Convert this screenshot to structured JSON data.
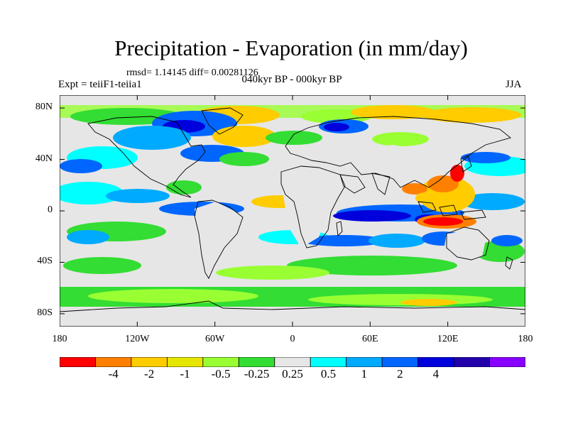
{
  "title": "Precipitation - Evaporation (in mm/day)",
  "stats": "rmsd= 1.14145 diff= 0.00281126",
  "experiment": "Expt = teiiF1-teiia1",
  "period": "040kyr BP - 000kyr BP",
  "season": "JJA",
  "lat_ticks": [
    {
      "value": 80,
      "label": "80N"
    },
    {
      "value": 40,
      "label": "40N"
    },
    {
      "value": 0,
      "label": "0"
    },
    {
      "value": -40,
      "label": "40S"
    },
    {
      "value": -80,
      "label": "80S"
    }
  ],
  "lon_ticks": [
    {
      "value": -180,
      "label": "180"
    },
    {
      "value": -120,
      "label": "120W"
    },
    {
      "value": -60,
      "label": "60W"
    },
    {
      "value": 0,
      "label": "0"
    },
    {
      "value": 60,
      "label": "60E"
    },
    {
      "value": 120,
      "label": "120E"
    },
    {
      "value": 180,
      "label": "180"
    }
  ],
  "colorbar": {
    "colors": [
      "#ff0000",
      "#ff8000",
      "#ffcc00",
      "#e6e600",
      "#99ff33",
      "#33dd33",
      "#e6e6e6",
      "#00ffff",
      "#00aaff",
      "#0066ff",
      "#0000dd",
      "#2200aa",
      "#8800ff"
    ],
    "labels": [
      "-4",
      "-2",
      "-1",
      "-0.5",
      "-0.25",
      "0.25",
      "0.5",
      "1",
      "2",
      "4"
    ]
  },
  "colors": {
    "neutral": "#e6e6e6",
    "coastline": "#000000"
  }
}
